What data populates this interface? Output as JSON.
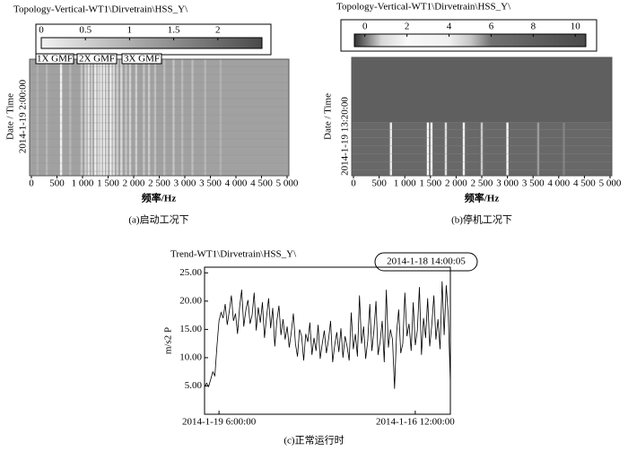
{
  "chart_data": [
    {
      "type": "heatmap",
      "title": "Topology-Vertical-WT1\\Dirvetrain\\HSS_Y\\",
      "clim": [
        0,
        2.5
      ],
      "cticks": [
        0,
        0.5,
        1,
        1.5,
        2
      ],
      "colormap": [
        {
          "value": 0,
          "color": "#f2f2f2"
        },
        {
          "value": 2.5,
          "color": "#4a4a4a"
        }
      ],
      "annotations": [
        "1X GMF",
        "2X GMF",
        "3X GMF"
      ],
      "background": [
        1.2
      ],
      "x": [
        120,
        300,
        580,
        760,
        980,
        1060,
        1120,
        1180,
        1250,
        1310,
        1360,
        1420,
        1480,
        1550,
        1610,
        1680,
        1760,
        1850,
        1930,
        2050,
        2200,
        2300,
        2420,
        2600,
        2780,
        2950,
        3150,
        3400,
        3700
      ],
      "values": [
        1.0,
        0.9,
        0.05,
        0.9,
        0.7,
        0.5,
        0.3,
        0.6,
        0.1,
        0.4,
        0.2,
        0.15,
        0.3,
        0.1,
        0.35,
        0.6,
        0.4,
        0.7,
        0.5,
        0.55,
        0.7,
        0.6,
        0.75,
        0.8,
        0.7,
        0.85,
        0.8,
        0.9,
        0.95
      ],
      "xlim": [
        0,
        5000
      ],
      "xticks": [
        0,
        500,
        {
          "value": 1000,
          "label": "1 000"
        },
        {
          "value": 1500,
          "label": "1 500"
        },
        {
          "value": 2000,
          "label": "2 000"
        },
        {
          "value": 2500,
          "label": "2 500"
        },
        {
          "value": 3000,
          "label": "3 000"
        },
        {
          "value": 3500,
          "label": "3 500"
        },
        {
          "value": 4000,
          "label": "4 000"
        },
        {
          "value": 4500,
          "label": "4 500"
        },
        {
          "value": 5000,
          "label": "5 000"
        }
      ],
      "xlabel": "频率/Hz",
      "ylabel": "Date / Time",
      "ytick_labels": [
        "2014-1-19 2:00:00"
      ],
      "caption": "(a)启动工况下"
    },
    {
      "type": "heatmap",
      "title": "Topology-Vertical-WT1\\Dirvetrain\\HSS_Y\\",
      "clim": [
        -0.5,
        10.5
      ],
      "cticks": [
        0,
        2,
        4,
        6,
        8,
        10
      ],
      "colormap": [
        {
          "value": -0.5,
          "color": "#303030"
        },
        {
          "value": 0.8,
          "color": "#d8d8d8"
        },
        {
          "value": 2,
          "color": "#f8f8f8"
        },
        {
          "value": 4,
          "color": "#f0f0f0"
        },
        {
          "value": 5,
          "color": "#c8c8c8"
        },
        {
          "value": 6,
          "color": "#707070"
        },
        {
          "value": 10.5,
          "color": "#4a4a4a"
        }
      ],
      "background": [
        8,
        7
      ],
      "x": [
        730,
        1450,
        1520,
        1800,
        2150,
        2500,
        3000,
        3600,
        4100
      ],
      "values": [
        1.5,
        2,
        3,
        4.5,
        4,
        5,
        2.5,
        5.5,
        5.8
      ],
      "xlim": [
        0,
        5000
      ],
      "xticks": [
        0,
        500,
        {
          "value": 1000,
          "label": "1 000"
        },
        {
          "value": 1500,
          "label": "1 500"
        },
        {
          "value": 2000,
          "label": "2 000"
        },
        {
          "value": 2500,
          "label": "2 500"
        },
        {
          "value": 3000,
          "label": "3 000"
        },
        {
          "value": 3500,
          "label": "3 500"
        },
        {
          "value": 4000,
          "label": "4 000"
        },
        {
          "value": 4500,
          "label": "4 500"
        },
        {
          "value": 5000,
          "label": "5 000"
        }
      ],
      "xlabel": "频率/Hz",
      "ylabel": "Date / Time",
      "ytick_labels": [
        "2014-1-19 13:20:00"
      ],
      "caption": "(b)停机工况下"
    },
    {
      "type": "line",
      "title": "Trend-WT1\\Dirvetrain\\HSS_Y\\",
      "annotation": "2014-1-18 14:00:05",
      "color": "#000000",
      "ylabel": "m/s2 P",
      "values": [
        4.8,
        5.5,
        4.9,
        6.2,
        7.5,
        6.8,
        12,
        16.5,
        18,
        17,
        19.5,
        15.8,
        18.2,
        21,
        16.5,
        17.8,
        14.2,
        19,
        22,
        15.5,
        18.5,
        20.2,
        16,
        17.5,
        21.5,
        14.8,
        18.9,
        16.2,
        19.8,
        13.5,
        17.2,
        20.5,
        15.2,
        18.8,
        12,
        16.5,
        19.2,
        14,
        16.8,
        13.2,
        15.5,
        11.8,
        14.5,
        17.8,
        12.5,
        10.2,
        15,
        13.8,
        9.5,
        14.2,
        12.8,
        16.2,
        10.5,
        13.5,
        11.2,
        15.8,
        9.8,
        12.5,
        14.8,
        10.8,
        13.2,
        16.5,
        9.2,
        12.2,
        14.5,
        11,
        15.2,
        10,
        13.8,
        12,
        9.5,
        18,
        11.5,
        14.2,
        10.2,
        21,
        12.5,
        15.5,
        9.8,
        13,
        19.5,
        11.2,
        14.8,
        20,
        10.5,
        12.8,
        16.5,
        9.2,
        22,
        11.8,
        15,
        13.2,
        4.5,
        14.5,
        18.5,
        10.8,
        12.5,
        21.5,
        13.8,
        16,
        11.2,
        19.8,
        12.2,
        14.8,
        22.5,
        10.5,
        17,
        13.5,
        20.5,
        12,
        15.8,
        21,
        13.2,
        16.8,
        11.5,
        23.5,
        14,
        22.8,
        17.5,
        5.5
      ],
      "xlim": [
        0,
        119
      ],
      "xticks": [
        {
          "value": 7,
          "label": "2014-1-19 6:00:00"
        },
        {
          "value": 102,
          "label": "2014-1-16 12:00:00"
        }
      ],
      "ylim": [
        0,
        26
      ],
      "yticks": [
        {
          "value": 5,
          "label": "5.00"
        },
        {
          "value": 10,
          "label": "10.00"
        },
        {
          "value": 15,
          "label": "15.00"
        },
        {
          "value": 20,
          "label": "20.00"
        },
        {
          "value": 25,
          "label": "25.00"
        }
      ],
      "caption": "(c)正常运行时"
    }
  ]
}
